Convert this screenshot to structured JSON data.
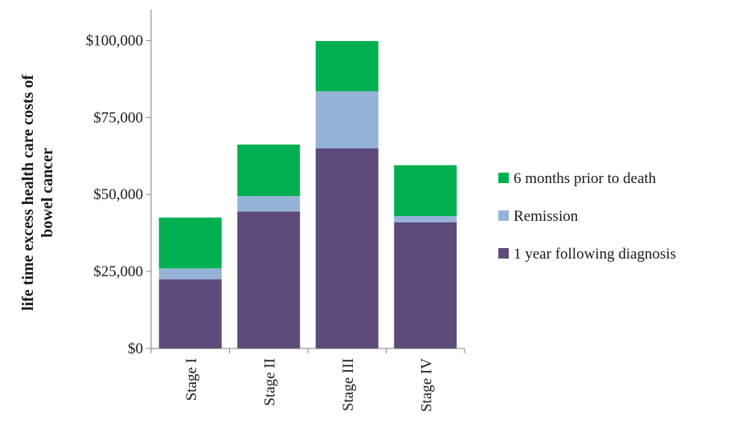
{
  "chart_data": {
    "type": "bar",
    "stacked": true,
    "title": "",
    "xlabel": "",
    "ylabel_lines": [
      "life time excess health care costs of",
      "bowel cancer"
    ],
    "categories": [
      "Stage I",
      "Stage II",
      "Stage III",
      "Stage IV"
    ],
    "ylim": [
      0,
      110000
    ],
    "yticks": [
      0,
      25000,
      50000,
      75000,
      100000
    ],
    "ytick_labels": [
      "$0",
      "$25,000",
      "$50,000",
      "$75,000",
      "$100,000"
    ],
    "grid": false,
    "legend_position": "right",
    "series": [
      {
        "name": "1 year following diagnosis",
        "color": "#5e4b7a",
        "values": [
          22500,
          44500,
          65000,
          41000
        ]
      },
      {
        "name": "Remission",
        "color": "#95b3d7",
        "values": [
          3500,
          5000,
          18500,
          2000
        ]
      },
      {
        "name": "6 months prior to death",
        "color": "#00b050",
        "values": [
          16500,
          16700,
          16300,
          16500
        ]
      }
    ],
    "legend_order": [
      "6 months prior to death",
      "Remission",
      "1 year following diagnosis"
    ]
  }
}
